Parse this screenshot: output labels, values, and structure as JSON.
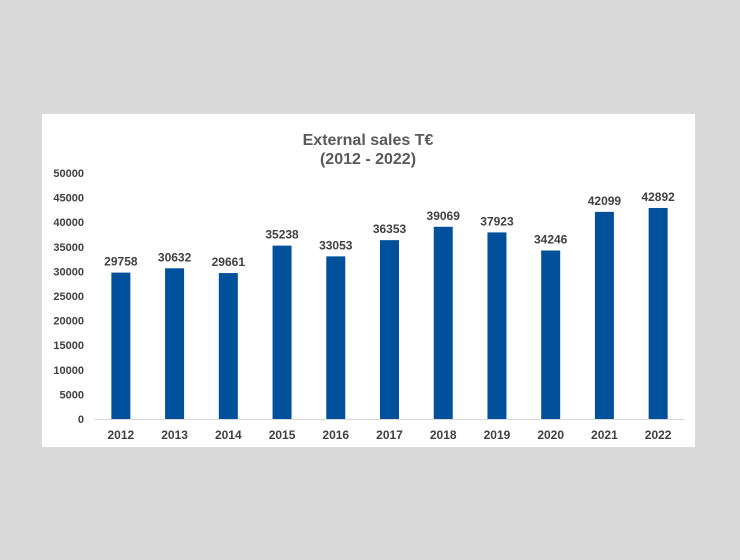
{
  "chart_data": {
    "type": "bar",
    "title": "External sales T€",
    "subtitle": "(2012 - 2022)",
    "categories": [
      "2012",
      "2013",
      "2014",
      "2015",
      "2016",
      "2017",
      "2018",
      "2019",
      "2020",
      "2021",
      "2022"
    ],
    "values": [
      29758,
      30632,
      29661,
      35238,
      33053,
      36353,
      39069,
      37923,
      34246,
      42099,
      42892
    ],
    "ylim": [
      0,
      50000
    ],
    "yticks": [
      "0",
      "5000",
      "10000",
      "15000",
      "20000",
      "25000",
      "30000",
      "35000",
      "40000",
      "45000",
      "50000"
    ],
    "bar_color": "#00509b",
    "grid": false,
    "legend": "none"
  }
}
